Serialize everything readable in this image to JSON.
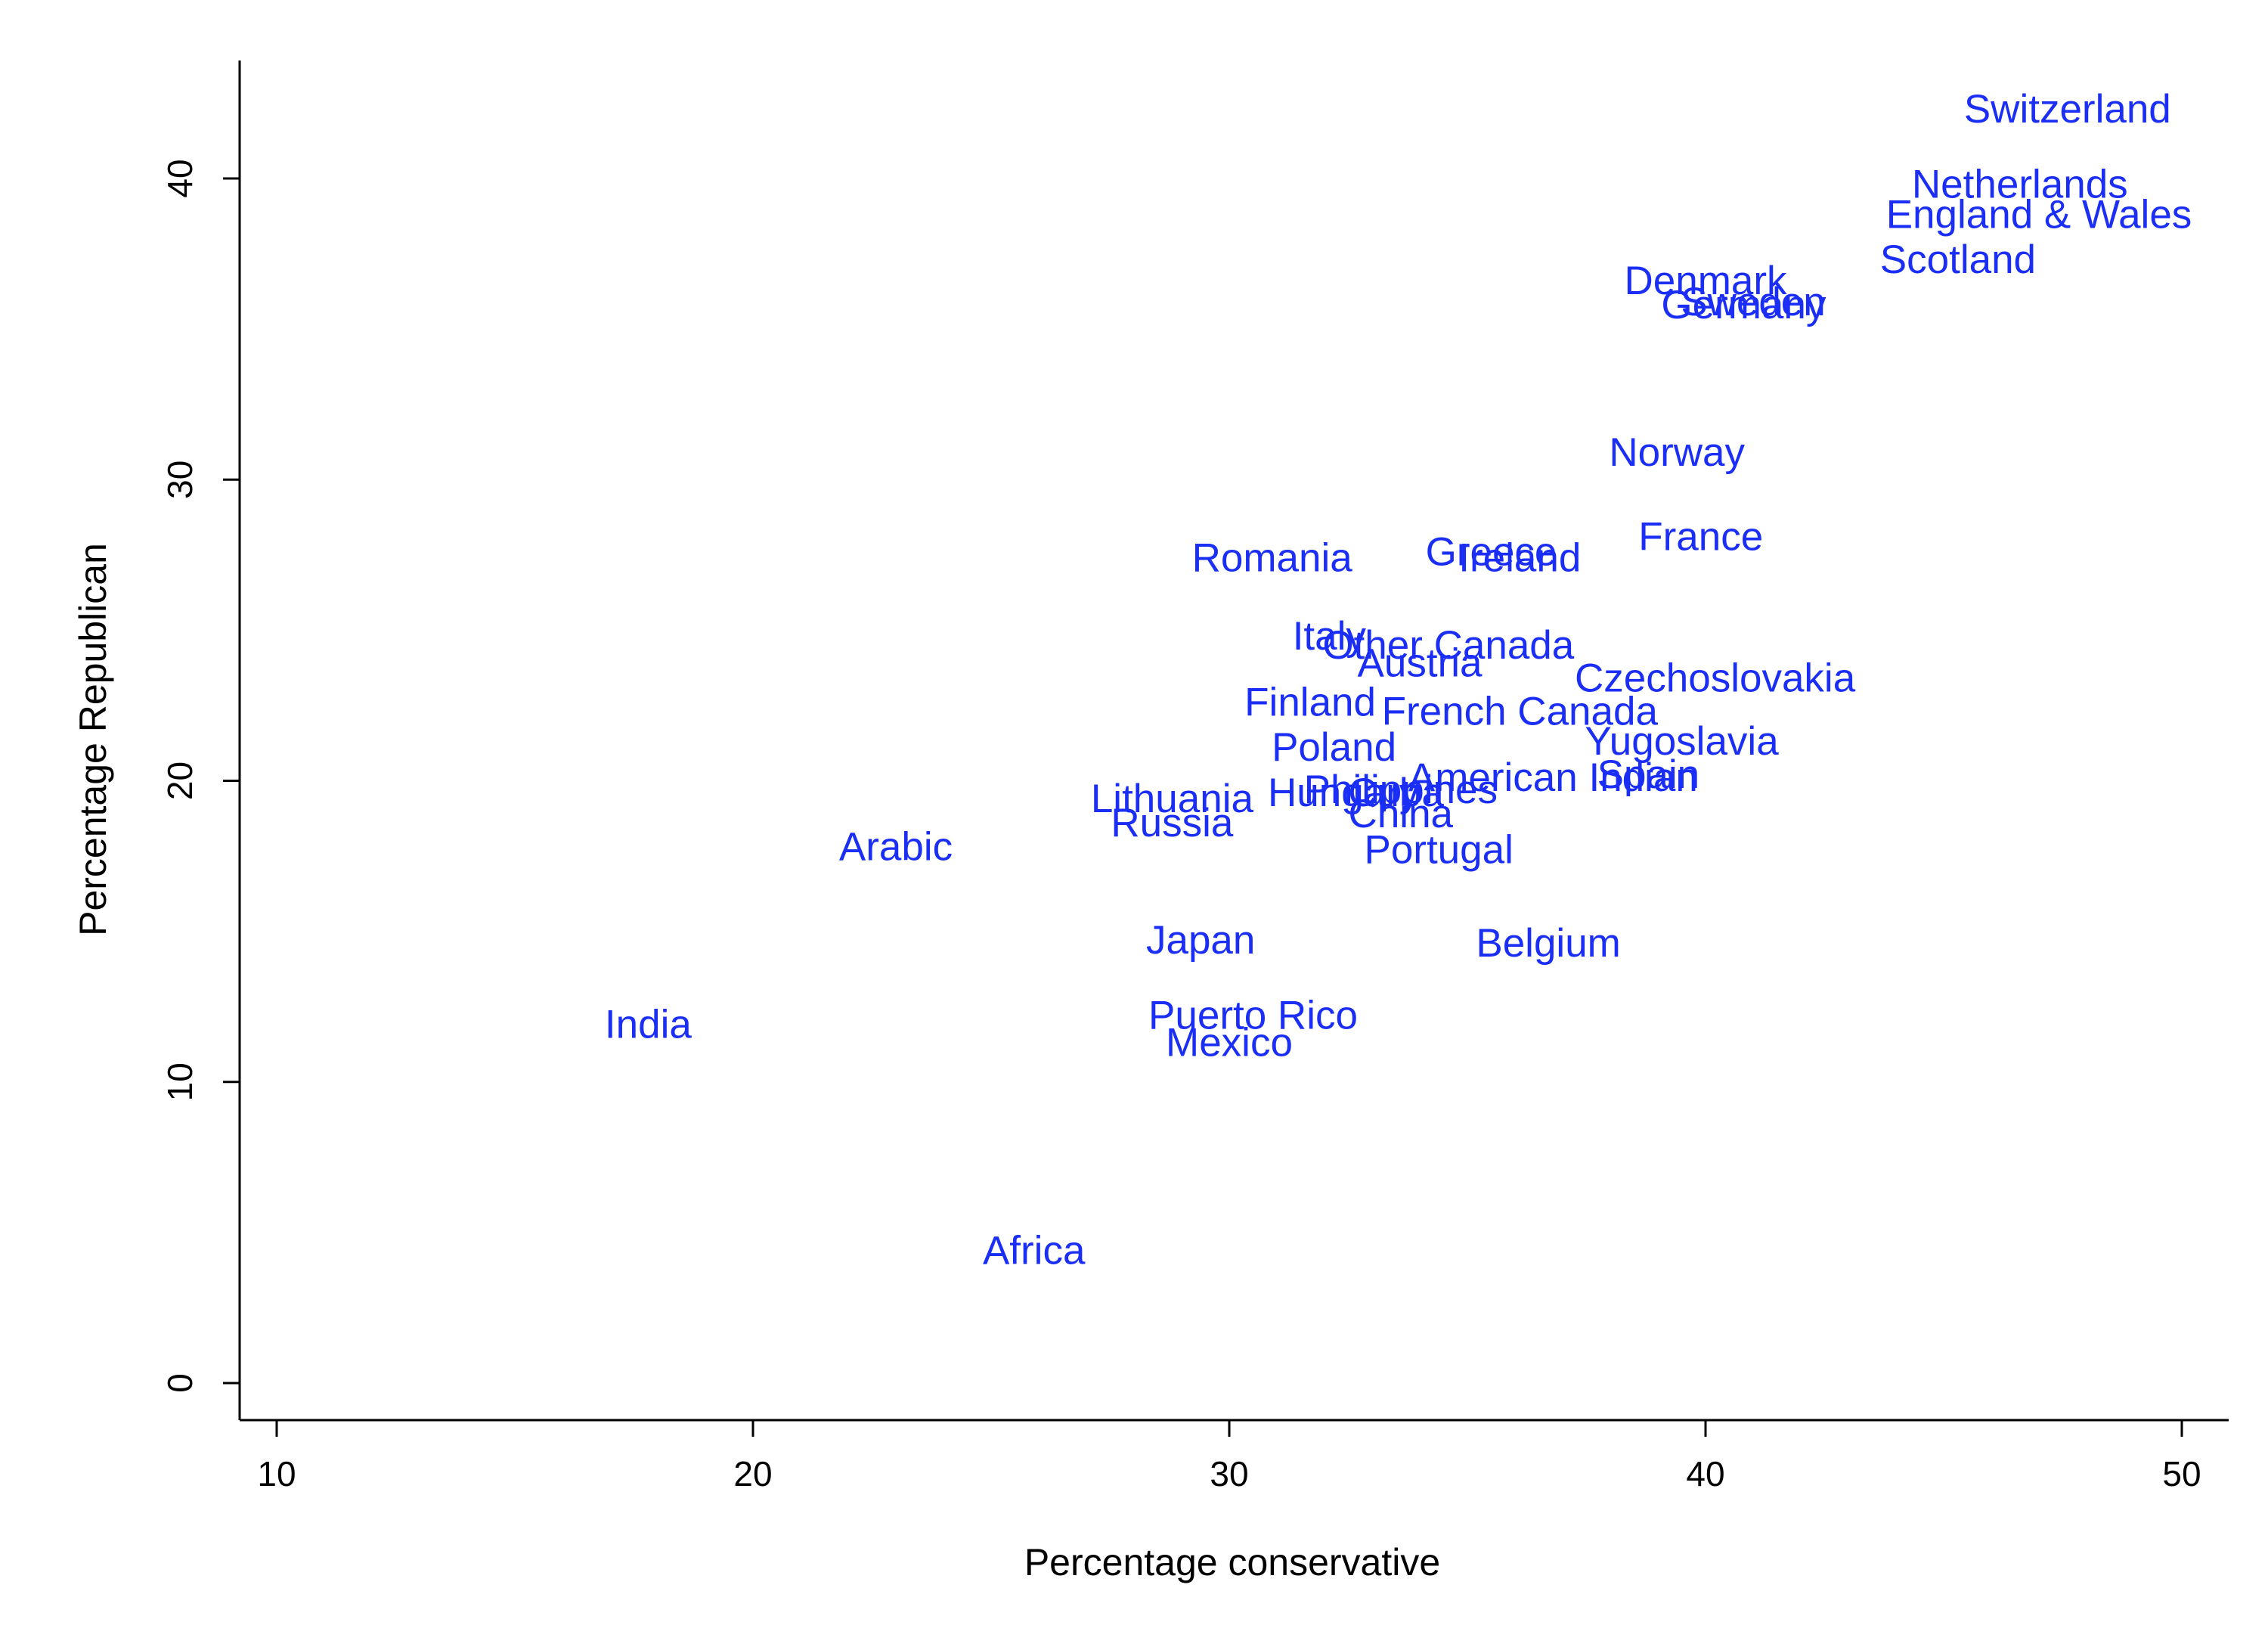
{
  "chart_data": {
    "type": "scatter",
    "title": "",
    "xlabel": "Percentage conservative",
    "ylabel": "Percentage Republican",
    "xlim": [
      10,
      50
    ],
    "ylim": [
      0,
      40
    ],
    "xticks": [
      10,
      20,
      30,
      40,
      50
    ],
    "yticks": [
      0,
      10,
      20,
      30,
      40
    ],
    "grid": false,
    "legend": "none",
    "marker": "label",
    "label_color": "#1a2ef5",
    "points": [
      {
        "label": "Switzerland",
        "x": 47.6,
        "y": 42.3
      },
      {
        "label": "Netherlands",
        "x": 46.6,
        "y": 39.8
      },
      {
        "label": "England & Wales",
        "x": 47.0,
        "y": 38.8
      },
      {
        "label": "Scotland",
        "x": 45.3,
        "y": 37.3
      },
      {
        "label": "Denmark",
        "x": 40.0,
        "y": 36.6
      },
      {
        "label": "Sweden",
        "x": 41.0,
        "y": 35.9
      },
      {
        "label": "Germany",
        "x": 40.8,
        "y": 35.8
      },
      {
        "label": "Norway",
        "x": 39.4,
        "y": 30.9
      },
      {
        "label": "France",
        "x": 39.9,
        "y": 28.1
      },
      {
        "label": "Greece",
        "x": 35.5,
        "y": 27.6
      },
      {
        "label": "Ireland",
        "x": 36.1,
        "y": 27.4
      },
      {
        "label": "Romania",
        "x": 30.9,
        "y": 27.4
      },
      {
        "label": "Italy",
        "x": 32.1,
        "y": 24.8
      },
      {
        "label": "Other Canada",
        "x": 34.6,
        "y": 24.5
      },
      {
        "label": "Austria",
        "x": 34.0,
        "y": 23.9
      },
      {
        "label": "Czechoslovakia",
        "x": 40.2,
        "y": 23.4
      },
      {
        "label": "Finland",
        "x": 31.7,
        "y": 22.6
      },
      {
        "label": "French Canada",
        "x": 36.1,
        "y": 22.3
      },
      {
        "label": "Yugoslavia",
        "x": 39.5,
        "y": 21.3
      },
      {
        "label": "Poland",
        "x": 32.2,
        "y": 21.1
      },
      {
        "label": "Spain",
        "x": 38.8,
        "y": 20.2
      },
      {
        "label": "American Indian",
        "x": 36.8,
        "y": 20.1
      },
      {
        "label": "Philippines",
        "x": 33.6,
        "y": 19.7
      },
      {
        "label": "Hungary",
        "x": 32.4,
        "y": 19.6
      },
      {
        "label": "Cuba",
        "x": 33.5,
        "y": 19.6
      },
      {
        "label": "China",
        "x": 33.6,
        "y": 18.9
      },
      {
        "label": "Lithuania",
        "x": 28.8,
        "y": 19.4
      },
      {
        "label": "Russia",
        "x": 28.8,
        "y": 18.6
      },
      {
        "label": "Arabic",
        "x": 23.0,
        "y": 17.8
      },
      {
        "label": "Portugal",
        "x": 34.4,
        "y": 17.7
      },
      {
        "label": "Japan",
        "x": 29.4,
        "y": 14.7
      },
      {
        "label": "Belgium",
        "x": 36.7,
        "y": 14.6
      },
      {
        "label": "Puerto Rico",
        "x": 30.5,
        "y": 12.2
      },
      {
        "label": "Mexico",
        "x": 30.0,
        "y": 11.3
      },
      {
        "label": "India",
        "x": 17.8,
        "y": 11.9
      },
      {
        "label": "Africa",
        "x": 25.9,
        "y": 4.4
      }
    ]
  }
}
